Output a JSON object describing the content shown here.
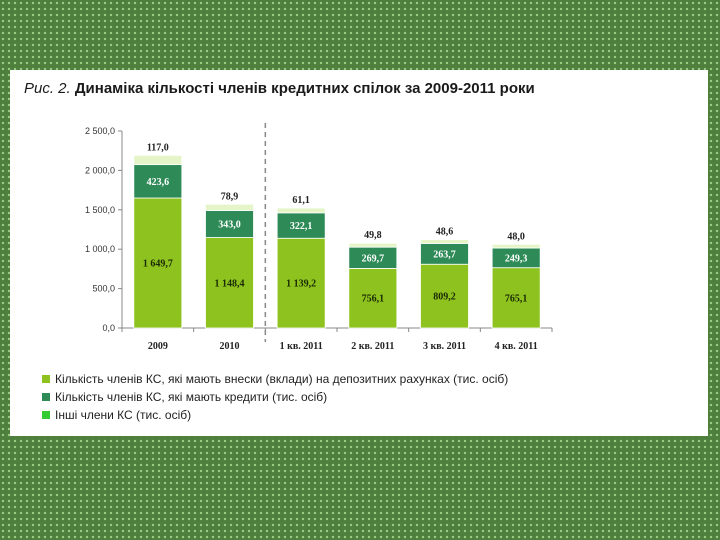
{
  "figure": {
    "label": "Рис. 2.",
    "title": "Динаміка кількості членів кредитних спілок за 2009-2011 роки"
  },
  "chart_data": {
    "type": "bar",
    "stacked": true,
    "categories": [
      "2009",
      "2010",
      "1 кв. 2011",
      "2 кв. 2011",
      "3 кв. 2011",
      "4 кв. 2011"
    ],
    "series": [
      {
        "name": "Кількість членів КС, які мають внески (вклади) на депозитних рахунках (тис. осіб)",
        "color": "#8dc21f",
        "values": [
          1649.7,
          1148.4,
          1139.2,
          756.1,
          809.2,
          765.1
        ],
        "labels": [
          "1 649,7",
          "1 148,4",
          "1 139,2",
          "756,1",
          "809,2",
          "765,1"
        ]
      },
      {
        "name": "Кількість членів КС, які мають кредити (тис. осіб)",
        "color": "#2e8b57",
        "values": [
          423.6,
          343.0,
          322.1,
          269.7,
          263.7,
          249.3
        ],
        "labels": [
          "423,6",
          "343,0",
          "322,1",
          "269,7",
          "263,7",
          "249,3"
        ]
      },
      {
        "name": "Інші члени КС (тис. осіб)",
        "color": "#e5f5c8",
        "values": [
          117.0,
          78.9,
          61.1,
          49.8,
          48.6,
          48.0
        ],
        "labels": [
          "117,0",
          "78,9",
          "61,1",
          "49,8",
          "48,6",
          "48,0"
        ]
      }
    ],
    "legend_colors": [
      "#8dc21f",
      "#2e8b57",
      "#33cc33"
    ],
    "yticks": [
      "0,0",
      "500,0",
      "1 000,0",
      "1 500,0",
      "2 000,0",
      "2 500,0"
    ],
    "ylim": [
      0,
      2500
    ],
    "divider_after_index": 1,
    "legend_position": "bottom-left",
    "grid": false
  }
}
